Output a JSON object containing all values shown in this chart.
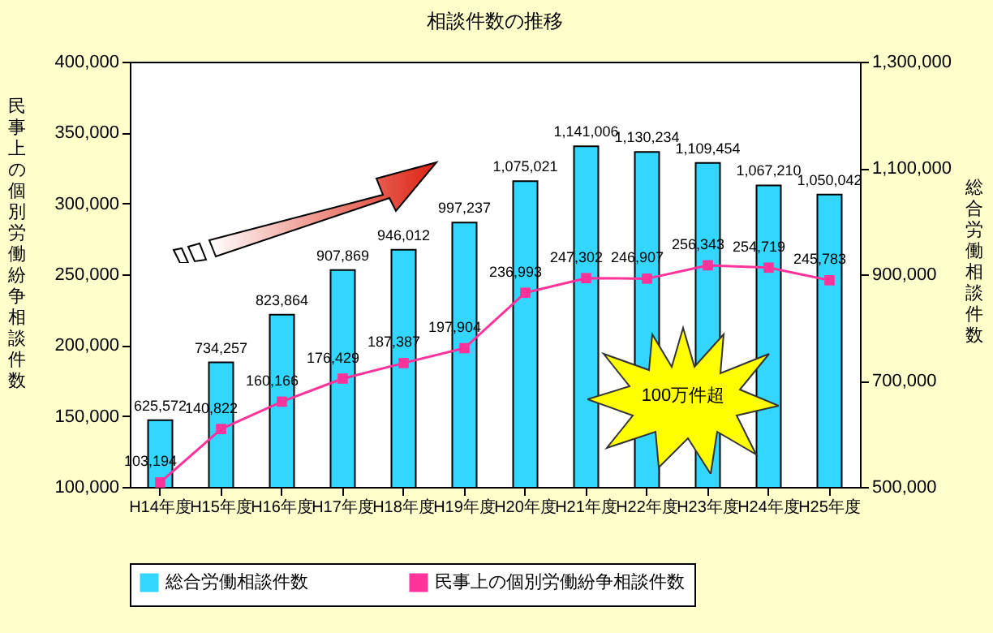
{
  "chart_data": {
    "type": "bar",
    "title": "相談件数の推移",
    "categories": [
      "H14年度",
      "H15年度",
      "H16年度",
      "H17年度",
      "H18年度",
      "H19年度",
      "H20年度",
      "H21年度",
      "H22年度",
      "H23年度",
      "H24年度",
      "H25年度"
    ],
    "series": [
      {
        "name": "総合労働相談件数",
        "axis": "y2",
        "color": "#33d6ff",
        "values": [
          625572,
          734257,
          823864,
          907869,
          946012,
          997237,
          1075021,
          1141006,
          1130234,
          1109454,
          1067210,
          1050042
        ],
        "value_labels": [
          "625,572",
          "734,257",
          "823,864",
          "907,869",
          "946,012",
          "997,237",
          "1,075,021",
          "1,141,006",
          "1,130,234",
          "1,109,454",
          "1,067,210",
          "1,050,042"
        ]
      },
      {
        "name": "民事上の個別労働紛争相談件数",
        "type": "line",
        "color": "#ff3399",
        "values": [
          103194,
          140822,
          160166,
          176429,
          187387,
          197904,
          236993,
          247302,
          246907,
          256343,
          254719,
          245783
        ],
        "value_labels": [
          "103,194",
          "140,822",
          "160,166",
          "176,429",
          "187,387",
          "197,904",
          "236,993",
          "247,302",
          "246,907",
          "256,343",
          "254,719",
          "245,783"
        ]
      }
    ],
    "ylabel": "民事上の個別労働紛争相談件数",
    "y2label": "総合労働相談件数",
    "ylim": [
      100000,
      400000
    ],
    "yticks": [
      {
        "value": 100000,
        "label": "100,000"
      },
      {
        "value": 150000,
        "label": "150,000"
      },
      {
        "value": 200000,
        "label": "200,000"
      },
      {
        "value": 250000,
        "label": "250,000"
      },
      {
        "value": 300000,
        "label": "300,000"
      },
      {
        "value": 350000,
        "label": "350,000"
      },
      {
        "value": 400000,
        "label": "400,000"
      }
    ],
    "y2lim": [
      500000,
      1300000
    ],
    "y2ticks": [
      {
        "value": 500000,
        "label": "500,000"
      },
      {
        "value": 700000,
        "label": "700,000"
      },
      {
        "value": 900000,
        "label": "900,000"
      },
      {
        "value": 1100000,
        "label": "1,100,000"
      },
      {
        "value": 1300000,
        "label": "1,300,000"
      }
    ],
    "legend": "bottom",
    "marker": "square",
    "line_style": "solid",
    "annotations": [
      "100万件超"
    ]
  }
}
